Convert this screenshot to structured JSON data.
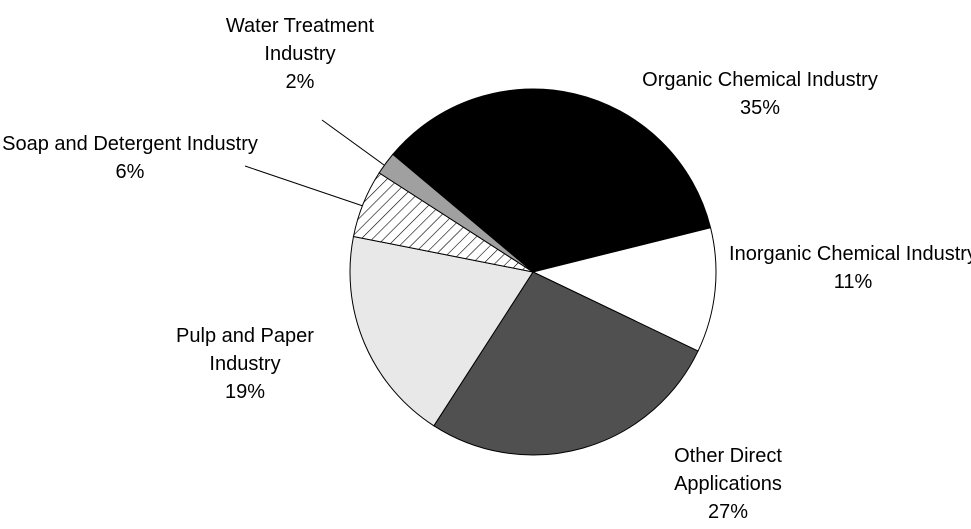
{
  "chart_data": {
    "type": "pie",
    "categories": [
      "Organic Chemical Industry",
      "Inorganic Chemical Industry",
      "Other Direct Applications",
      "Pulp and Paper Industry",
      "Soap and Detergent Industry",
      "Water Treatment Industry"
    ],
    "values": [
      35,
      11,
      27,
      19,
      6,
      2
    ],
    "value_labels": [
      "35%",
      "11%",
      "27%",
      "19%",
      "6%",
      "2%"
    ],
    "colors": [
      "#000000",
      "#ffffff",
      "#505050",
      "#e8e8e8",
      "url(#hatch)",
      "#a0a0a0"
    ]
  }
}
